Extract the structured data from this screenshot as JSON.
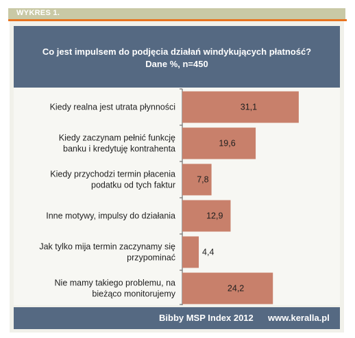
{
  "figure_label": "WYKRES 1.",
  "chart_data": {
    "type": "bar",
    "orientation": "horizontal",
    "title": "Co jest impulsem do podjęcia działań windykujących płatność?",
    "subtitle": "Dane %, n=450",
    "categories": [
      [
        "Kiedy realna jest utrata płynności"
      ],
      [
        "Kiedy zaczynam pełnić funkcję",
        "banku i kredytuję kontrahenta"
      ],
      [
        "Kiedy przychodzi termin płacenia",
        "podatku od tych faktur"
      ],
      [
        "Inne motywy, impulsy do działania"
      ],
      [
        "Jak tylko mija termin zaczynamy się",
        "przypominać"
      ],
      [
        "Nie mamy takiego problemu, na",
        "bieżąco monitorujemy"
      ]
    ],
    "values": [
      31.1,
      19.6,
      7.8,
      12.9,
      4.4,
      24.2
    ],
    "value_labels": [
      "31,1",
      "19,6",
      "7,8",
      "12,9",
      "4,4",
      "24,2"
    ],
    "xlim": [
      0,
      41
    ],
    "grid": false,
    "bar_color": "#c8806b"
  },
  "footer": {
    "source": "Bibby MSP Index 2012",
    "url": "www.keralla.pl"
  }
}
